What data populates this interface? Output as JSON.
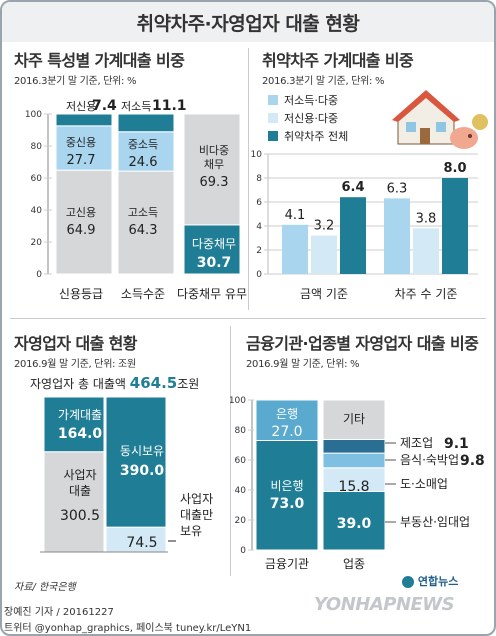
{
  "main_title": "취약차주·자영업자 대출 현황",
  "colors": {
    "light_gray": "#d5d7d9",
    "light_blue": "#a9d6ee",
    "pale_blue": "#d3eaf6",
    "teal": "#1f7d96",
    "mid_blue": "#5aa9cf",
    "dark_navy": "#2a4d6b"
  },
  "panel1": {
    "title": "차주 특성별 가계대출 비중",
    "subtitle": "2016.3분기 말 기준, 단위: %"
  },
  "panel2": {
    "title": "취약차주 가계대출 비중",
    "subtitle": "2016.3분기 말 기준, 단위: %"
  },
  "panel3": {
    "title": "자영업자 대출 현황",
    "subtitle": "2016.9월 말 기준, 단위: 조원",
    "total_label": "자영업자 총 대출액",
    "total_value": "464.5",
    "total_unit": "조원",
    "note": "사업자대출만보유"
  },
  "panel4": {
    "title": "금융기관·업종별 자영업자 대출 비중",
    "subtitle": "2016.9월 말 기준, 단위: %"
  },
  "footer": {
    "source": "자료/ 한국은행",
    "reporter": "장예진 기자 / 20161227",
    "social": "트위터 @yonhap_graphics, 페이스북 tuney.kr/LeYN1",
    "logo": "연합뉴스",
    "watermark": "YONHAPNEWS"
  },
  "chart_data": [
    {
      "type": "bar",
      "stacked": true,
      "categories": [
        "신용등급",
        "소득수준",
        "다중채무 유무"
      ],
      "ylim": [
        0,
        100
      ],
      "yticks": [
        0,
        20,
        40,
        60,
        80,
        100
      ],
      "segments": [
        {
          "category": "신용등급",
          "name": "고신용",
          "value": 64.9,
          "color": "#d5d7d9"
        },
        {
          "category": "신용등급",
          "name": "중신용",
          "value": 27.7,
          "color": "#a9d6ee"
        },
        {
          "category": "신용등급",
          "name": "저신용",
          "value": 7.4,
          "color": "#1f7d96"
        },
        {
          "category": "소득수준",
          "name": "고소득",
          "value": 64.3,
          "color": "#d5d7d9"
        },
        {
          "category": "소득수준",
          "name": "중소득",
          "value": 24.6,
          "color": "#a9d6ee"
        },
        {
          "category": "소득수준",
          "name": "저소득",
          "value": 11.1,
          "color": "#1f7d96"
        },
        {
          "category": "다중채무 유무",
          "name": "다중채무",
          "value": 30.7,
          "color": "#1f7d96"
        },
        {
          "category": "다중채무 유무",
          "name": "비다중채무",
          "value": 69.3,
          "color": "#d5d7d9"
        }
      ]
    },
    {
      "type": "bar",
      "categories": [
        "금액 기준",
        "차주 수 기준"
      ],
      "ylim": [
        0,
        10
      ],
      "yticks": [
        0,
        2,
        4,
        6,
        8,
        10
      ],
      "series": [
        {
          "name": "저소득·다중",
          "values": [
            4.1,
            6.3
          ],
          "color": "#a9d6ee"
        },
        {
          "name": "저신용·다중",
          "values": [
            3.2,
            3.8
          ],
          "color": "#d3eaf6"
        },
        {
          "name": "취약차주 전체",
          "values": [
            6.4,
            8.0
          ],
          "color": "#1f7d96"
        }
      ],
      "legend": "top-left"
    },
    {
      "type": "bar",
      "stacked": true,
      "categories": [
        "가계대출·사업자대출",
        "동시보유·사업자대출만 보유"
      ],
      "total": 464.5,
      "segments": [
        {
          "category": 0,
          "name": "사업자대출",
          "value": 300.5,
          "color": "#d5d7d9"
        },
        {
          "category": 0,
          "name": "가계대출",
          "value": 164.0,
          "color": "#1f7d96"
        },
        {
          "category": 1,
          "name": "사업자대출만 보유",
          "value": 74.5,
          "color": "#d3eaf6"
        },
        {
          "category": 1,
          "name": "동시보유",
          "value": 390.0,
          "color": "#1f7d96"
        }
      ]
    },
    {
      "type": "bar",
      "stacked": true,
      "categories": [
        "금융기관",
        "업종"
      ],
      "ylim": [
        0,
        100
      ],
      "yticks": [
        0,
        20,
        40,
        60,
        80,
        100
      ],
      "segments": [
        {
          "category": "금융기관",
          "name": "비은행",
          "value": 73.0,
          "color": "#1f7d96"
        },
        {
          "category": "금융기관",
          "name": "은행",
          "value": 27.0,
          "color": "#5aa9cf"
        },
        {
          "category": "업종",
          "name": "부동산·임대업",
          "value": 39.0,
          "color": "#1f7d96"
        },
        {
          "category": "업종",
          "name": "도·소매업",
          "value": 15.8,
          "color": "#d3eaf6"
        },
        {
          "category": "업종",
          "name": "음식·숙박업",
          "value": 9.8,
          "color": "#7fc0e2"
        },
        {
          "category": "업종",
          "name": "제조업",
          "value": 9.1,
          "color": "#2a6f93"
        },
        {
          "category": "업종",
          "name": "기타",
          "value": 26.3,
          "color": "#d5d7d9"
        }
      ]
    }
  ],
  "labels": {
    "p1": {
      "b1": {
        "bottom_name": "고신용",
        "bottom_val": "64.9",
        "mid_name": "중신용",
        "mid_val": "27.7",
        "top_name": "저신용",
        "top_val": "7.4"
      },
      "b2": {
        "bottom_name": "고소득",
        "bottom_val": "64.3",
        "mid_name": "중소득",
        "mid_val": "24.6",
        "top_name": "저소득",
        "top_val": "11.1"
      },
      "b3": {
        "top_name1": "비다중",
        "top_name2": "채무",
        "top_val": "69.3",
        "bottom_name": "다중채무",
        "bottom_val": "30.7"
      },
      "xcats": [
        "신용등급",
        "소득수준",
        "다중채무 유무"
      ]
    },
    "p2": {
      "values": [
        "4.1",
        "3.2",
        "6.4",
        "6.3",
        "3.8",
        "8.0"
      ],
      "xcats": [
        "금액 기준",
        "차주 수 기준"
      ],
      "legend": [
        "저소득·다중",
        "저신용·다중",
        "취약차주 전체"
      ]
    },
    "p3": {
      "left_top_name": "가계대출",
      "left_top_val": "164.0",
      "left_bot_name1": "사업자",
      "left_bot_name2": "대출",
      "left_bot_val": "300.5",
      "right_top_name": "동시보유",
      "right_top_val": "390.0",
      "right_bot_val": "74.5",
      "note_lines": [
        "사업자",
        "대출만",
        "보유"
      ]
    },
    "p4": {
      "bank_name": "은행",
      "bank_val": "27.0",
      "nonbank_name": "비은행",
      "nonbank_val": "73.0",
      "other_name": "기타",
      "retail_val": "15.8",
      "realestate_val": "39.0",
      "side": [
        {
          "name": "제조업",
          "val": "9.1"
        },
        {
          "name": "음식·숙박업",
          "val": "9.8"
        },
        {
          "name": "도·소매업",
          "val": ""
        },
        {
          "name": "부동산·임대업",
          "val": ""
        }
      ],
      "xcats": [
        "금융기관",
        "업종"
      ]
    }
  }
}
